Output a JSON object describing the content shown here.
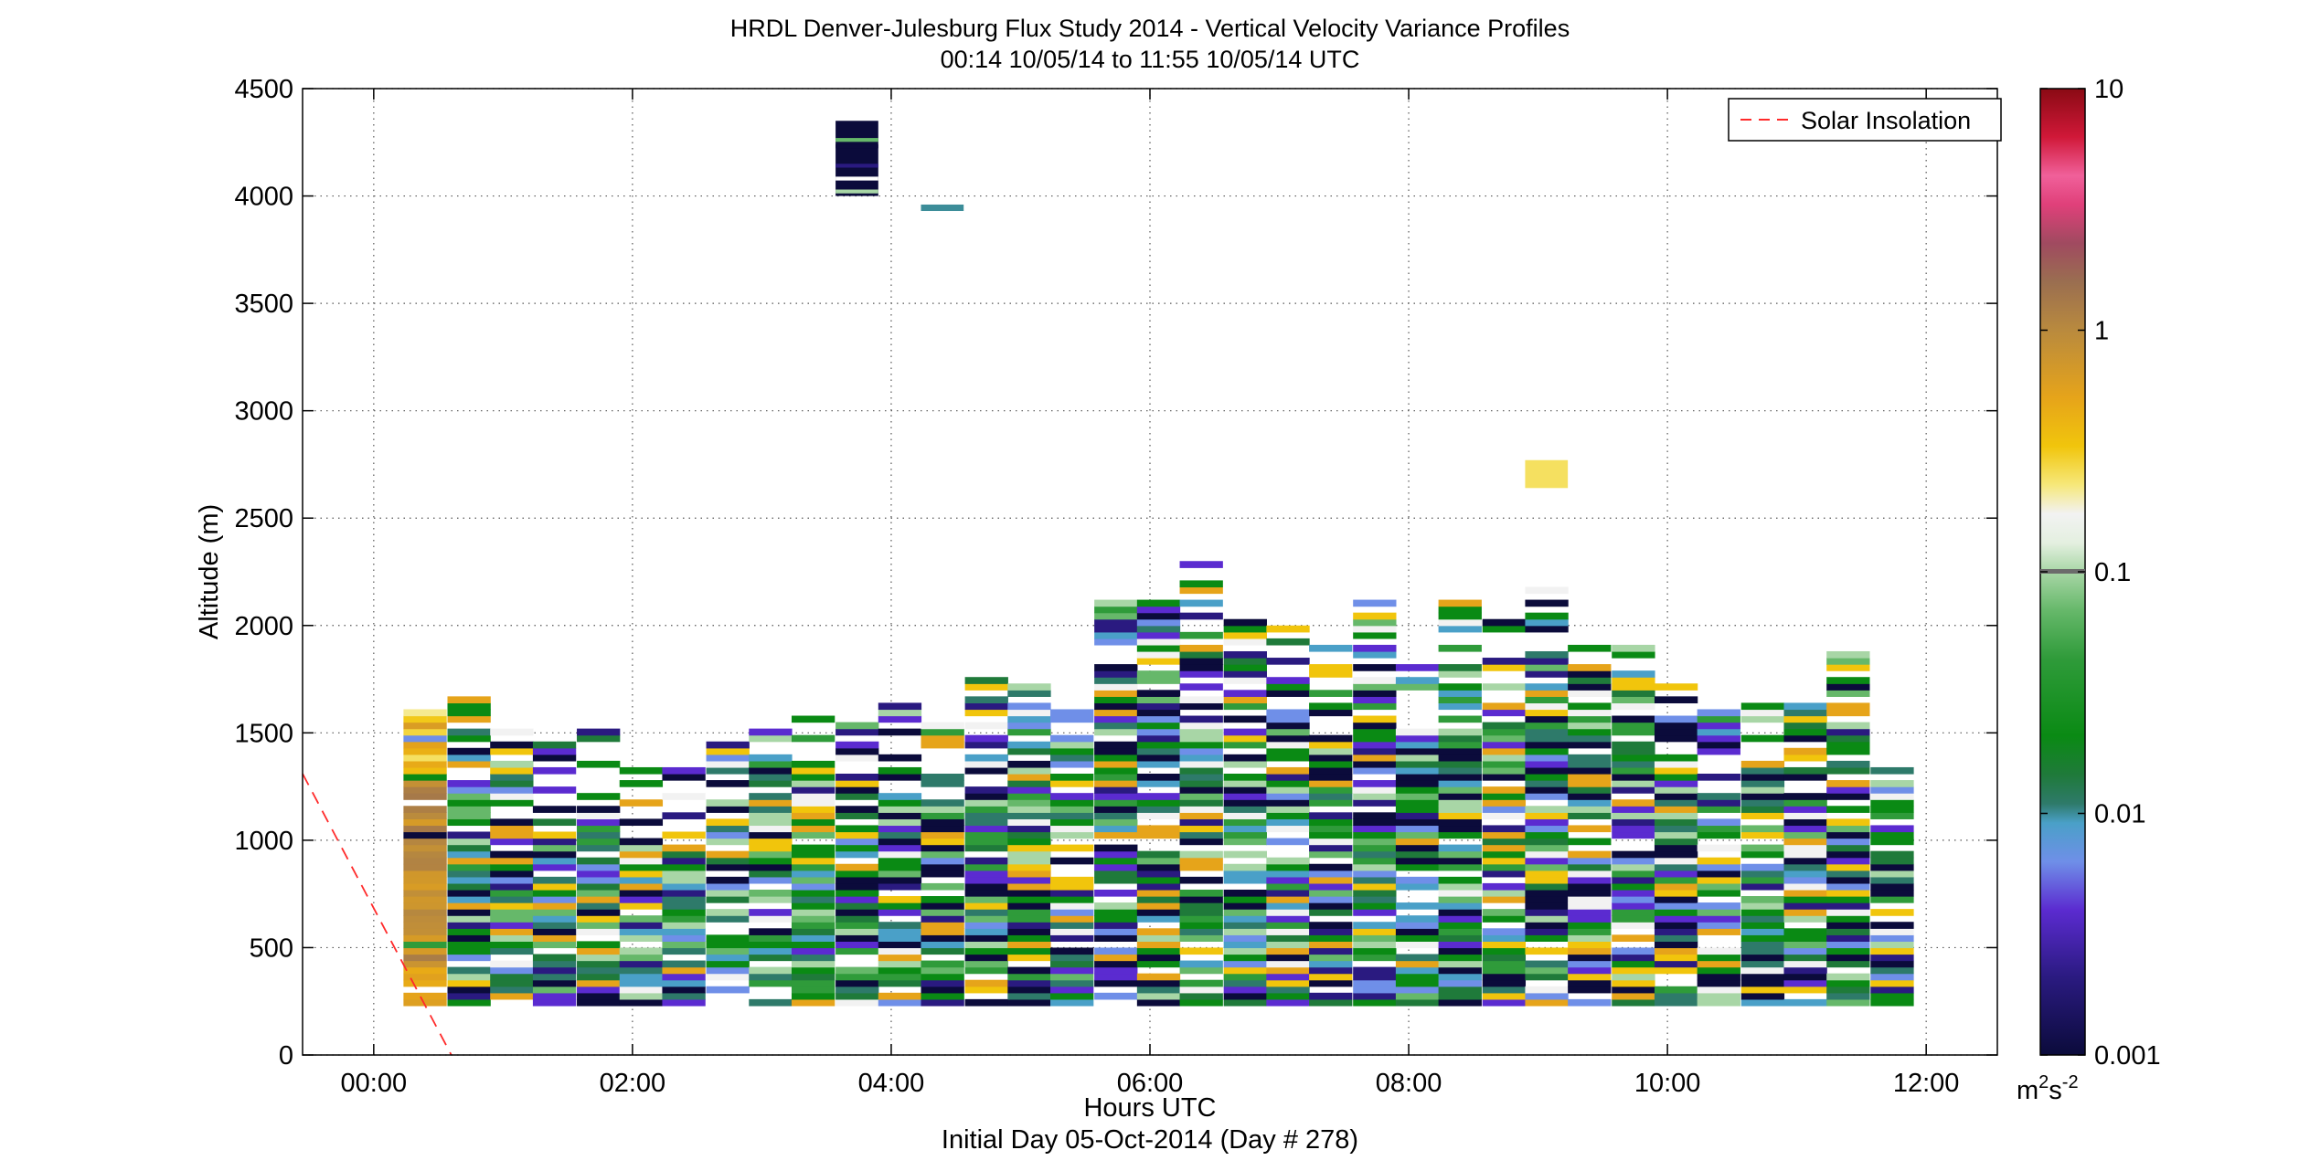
{
  "chart_data": {
    "type": "heatmap",
    "title": "HRDL Denver-Julesburg Flux Study 2014 - Vertical Velocity Variance Profiles",
    "subtitle": "00:14 10/05/14 to 11:55 10/05/14  UTC",
    "xlabel": "Hours UTC",
    "xlabel_secondary": "Initial Day 05-Oct-2014 (Day # 278)",
    "ylabel": "Altitude (m)",
    "x_unit": "hours UTC",
    "xlim": [
      -0.55,
      12.55
    ],
    "ylim": [
      0,
      4500
    ],
    "x_ticks": [
      0,
      2,
      4,
      6,
      8,
      10,
      12
    ],
    "x_tick_labels": [
      "00:00",
      "02:00",
      "04:00",
      "06:00",
      "08:00",
      "10:00",
      "12:00"
    ],
    "y_ticks": [
      0,
      500,
      1000,
      1500,
      2000,
      2500,
      3000,
      3500,
      4000,
      4500
    ],
    "y_tick_labels": [
      "0",
      "500",
      "1000",
      "1500",
      "2000",
      "2500",
      "3000",
      "3500",
      "4000",
      "4500"
    ],
    "grid": true,
    "legend": {
      "position": "top-right",
      "entries": [
        "Solar Insolation"
      ]
    },
    "colorbar": {
      "scale": "log",
      "range": [
        0.001,
        10
      ],
      "tick_values": [
        0.001,
        0.01,
        0.1,
        1,
        10
      ],
      "tick_labels": [
        "0.001",
        "0.01",
        "0.1",
        "1",
        "10"
      ],
      "unit_label_base": "m",
      "unit_label_exp1": "2",
      "unit_label_mid": "s",
      "unit_label_exp2": "-2"
    },
    "solar_insolation_line": {
      "name": "Solar Insolation",
      "color": "#ff2a2a",
      "style": "dashed",
      "points": [
        [
          -0.55,
          1310
        ],
        [
          0.6,
          0
        ]
      ]
    },
    "profiles": {
      "start_hours": [
        0.23,
        0.57,
        0.9,
        1.23,
        1.57,
        1.9,
        2.23,
        2.57,
        2.9,
        3.23,
        3.57,
        3.9,
        4.23,
        4.57,
        4.9,
        5.23,
        5.57,
        5.9,
        6.23,
        6.57,
        6.9,
        7.23,
        7.57,
        7.9,
        8.23,
        8.57,
        8.9,
        9.23,
        9.57,
        9.9,
        10.23,
        10.57,
        10.9,
        11.23,
        11.57
      ],
      "width_hours": 0.33,
      "bin_height_m": 30,
      "base_altitude_m": 230,
      "top_altitude_m": [
        1590,
        1670,
        1580,
        1460,
        1550,
        1340,
        1340,
        1450,
        1550,
        1610,
        1600,
        1640,
        1640,
        1770,
        1760,
        1760,
        2180,
        2180,
        2300,
        2060,
        1990,
        1910,
        2120,
        1860,
        2120,
        2020,
        2200,
        1940,
        1890,
        1760,
        1590,
        1730,
        1630,
        1880,
        1330
      ],
      "isolated_cells": [
        {
          "hour": 3.57,
          "bottom_m": 4000,
          "top_m": 4350,
          "value": 0.001
        },
        {
          "hour": 4.23,
          "bottom_m": 3930,
          "top_m": 3960,
          "value": 0.01
        },
        {
          "hour": 8.9,
          "bottom_m": 2640,
          "top_m": 2770,
          "value": 0.25
        }
      ]
    }
  }
}
